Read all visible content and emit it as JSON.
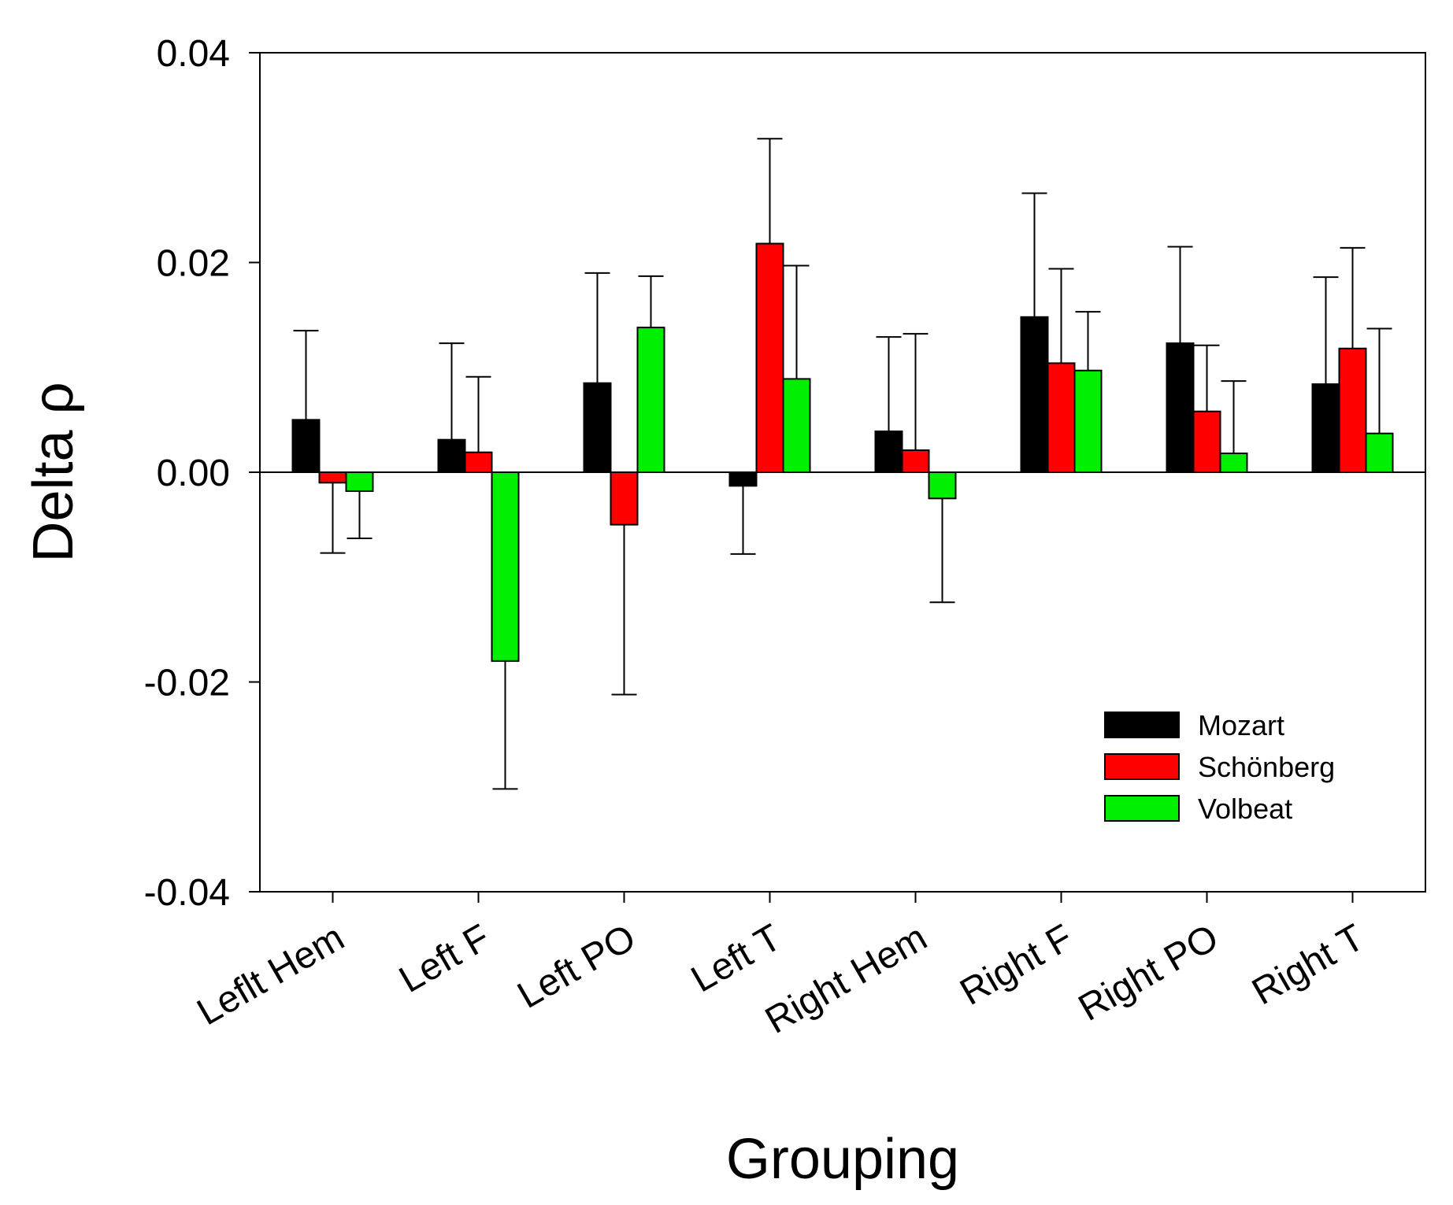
{
  "chart_data": {
    "type": "bar",
    "title": "",
    "xlabel": "Grouping",
    "ylabel": "Delta ρ",
    "ylim": [
      -0.04,
      0.04
    ],
    "yticks": [
      "0.04",
      "0.02",
      "0.00",
      "-0.02",
      "-0.04"
    ],
    "ytick_values": [
      0.04,
      0.02,
      0.0,
      -0.02,
      -0.04
    ],
    "grid": false,
    "legend_position": "bottom-right",
    "categories": [
      "Leflt Hem",
      "Left F",
      "Left PO",
      "Left T",
      "Right Hem",
      "Right F",
      "Right PO",
      "Right T"
    ],
    "series": [
      {
        "name": "Mozart",
        "color": "#000000",
        "values": [
          0.005,
          0.0031,
          0.0085,
          -0.0013,
          0.0039,
          0.0148,
          0.0123,
          0.0084
        ],
        "error": [
          0.0085,
          0.0092,
          0.0105,
          0.0065,
          0.009,
          0.0118,
          0.0092,
          0.0102
        ],
        "error_direction": [
          "up",
          "up",
          "up",
          "down",
          "up",
          "up",
          "up",
          "up"
        ]
      },
      {
        "name": "Schönberg",
        "color": "#ff0000",
        "values": [
          -0.001,
          0.0019,
          -0.005,
          0.0218,
          0.0021,
          0.0104,
          0.0058,
          0.0118
        ],
        "error": [
          0.0067,
          0.0072,
          0.0162,
          0.01,
          0.0111,
          0.009,
          0.0063,
          0.0096
        ],
        "error_direction": [
          "down",
          "up",
          "down",
          "up",
          "up",
          "up",
          "up",
          "up"
        ]
      },
      {
        "name": "Volbeat",
        "color": "#00ee00",
        "values": [
          -0.0018,
          -0.018,
          0.0138,
          0.0089,
          -0.0025,
          0.0097,
          0.0018,
          0.0037
        ],
        "error": [
          0.0045,
          0.0122,
          0.0049,
          0.0108,
          0.0099,
          0.0056,
          0.0069,
          0.01
        ],
        "error_direction": [
          "down",
          "down",
          "up",
          "up",
          "down",
          "up",
          "up",
          "up"
        ]
      }
    ]
  }
}
